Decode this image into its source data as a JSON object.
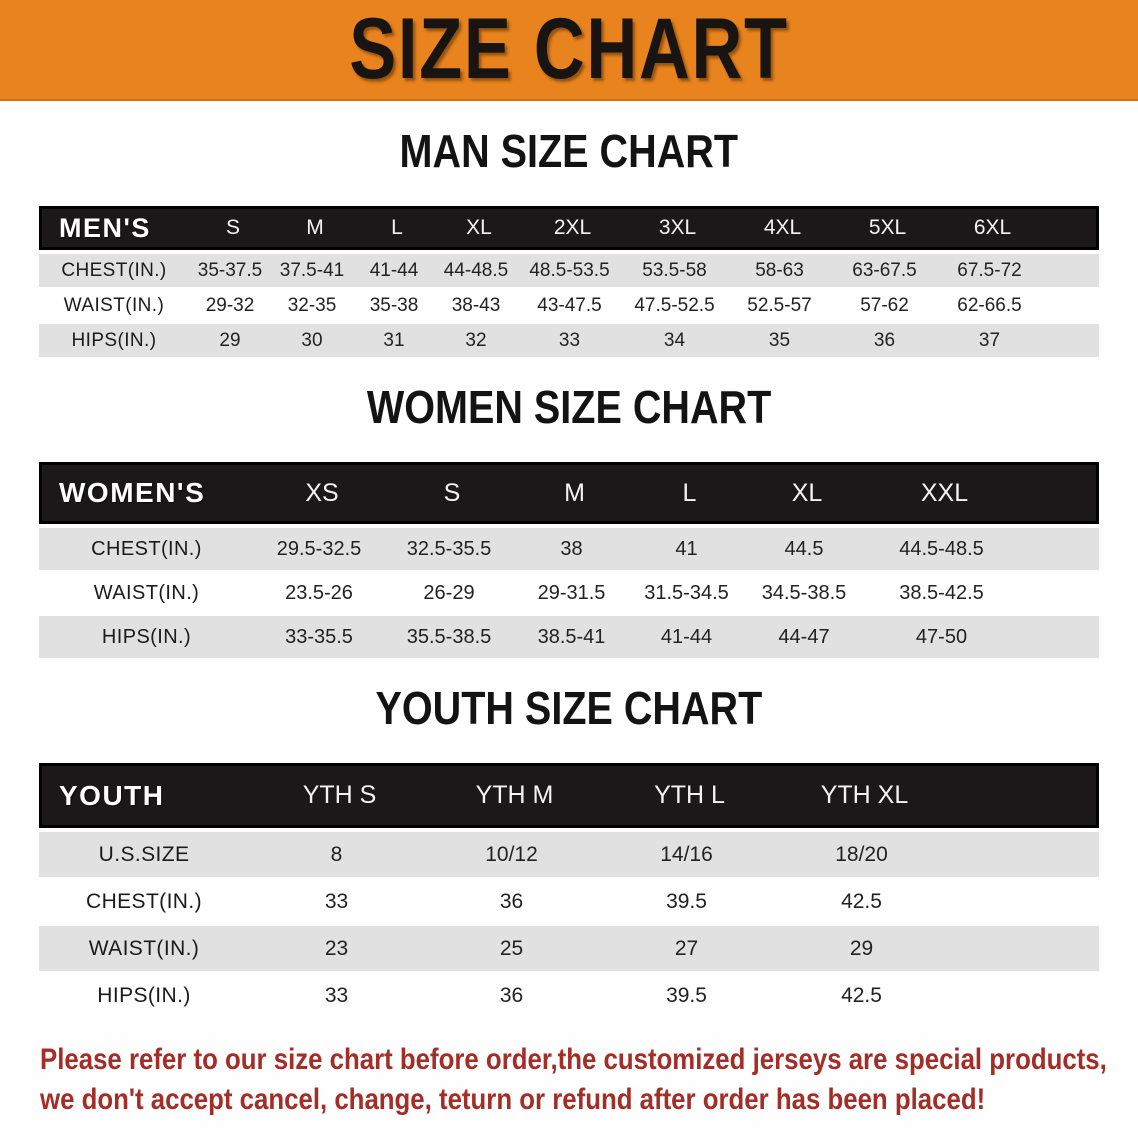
{
  "banner": {
    "title": "SIZE CHART",
    "bg_color": "#E8831E"
  },
  "sections": [
    {
      "heading": "MAN SIZE CHART",
      "table": {
        "columns": [
          "MEN'S",
          "S",
          "M",
          "L",
          "XL",
          "2XL",
          "3XL",
          "4XL",
          "5XL",
          "6XL"
        ],
        "rows": [
          {
            "label": "CHEST(IN.)",
            "values": [
              "35-37.5",
              "37.5-41",
              "41-44",
              "44-48.5",
              "48.5-53.5",
              "53.5-58",
              "58-63",
              "63-67.5",
              "67.5-72"
            ]
          },
          {
            "label": "WAIST(IN.)",
            "values": [
              "29-32",
              "32-35",
              "35-38",
              "38-43",
              "43-47.5",
              "47.5-52.5",
              "52.5-57",
              "57-62",
              "62-66.5"
            ]
          },
          {
            "label": "HIPS(IN.)",
            "values": [
              "29",
              "30",
              "31",
              "32",
              "33",
              "34",
              "35",
              "36",
              "37"
            ]
          }
        ]
      }
    },
    {
      "heading": "WOMEN SIZE CHART",
      "table": {
        "columns": [
          "WOMEN'S",
          "XS",
          "S",
          "M",
          "L",
          "XL",
          "XXL"
        ],
        "rows": [
          {
            "label": "CHEST(IN.)",
            "values": [
              "29.5-32.5",
              "32.5-35.5",
              "38",
              "41",
              "44.5",
              "44.5-48.5"
            ]
          },
          {
            "label": "WAIST(IN.)",
            "values": [
              "23.5-26",
              "26-29",
              "29-31.5",
              "31.5-34.5",
              "34.5-38.5",
              "38.5-42.5"
            ]
          },
          {
            "label": "HIPS(IN.)",
            "values": [
              "33-35.5",
              "35.5-38.5",
              "38.5-41",
              "41-44",
              "44-47",
              "47-50"
            ]
          }
        ]
      }
    },
    {
      "heading": "YOUTH SIZE CHART",
      "table": {
        "columns": [
          "YOUTH",
          "YTH S",
          "YTH M",
          "YTH L",
          "YTH XL"
        ],
        "rows": [
          {
            "label": "U.S.SIZE",
            "values": [
              "8",
              "10/12",
              "14/16",
              "18/20"
            ]
          },
          {
            "label": "CHEST(IN.)",
            "values": [
              "33",
              "36",
              "39.5",
              "42.5"
            ]
          },
          {
            "label": "WAIST(IN.)",
            "values": [
              "23",
              "25",
              "27",
              "29"
            ]
          },
          {
            "label": "HIPS(IN.)",
            "values": [
              "33",
              "36",
              "39.5",
              "42.5"
            ]
          }
        ]
      }
    }
  ],
  "disclaimer": {
    "color": "#A32E28",
    "lines": [
      "Please refer to our size chart before order,the customized jerseys are special products,",
      "we don't accept cancel, change, teturn or refund after order has been placed!"
    ]
  }
}
